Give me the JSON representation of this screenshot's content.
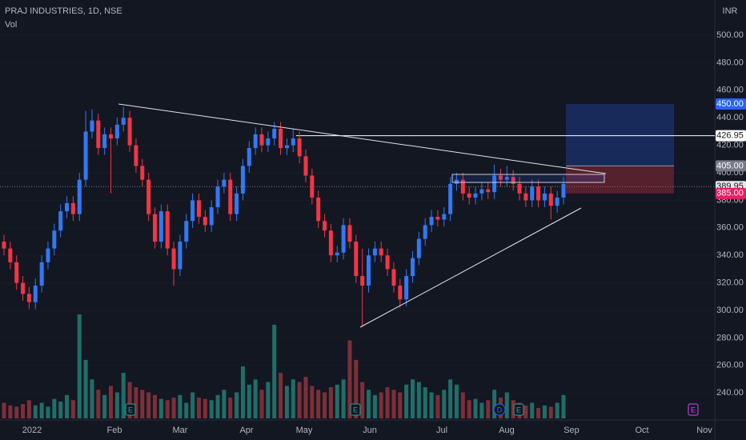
{
  "header": {
    "title": "PRAJ INDUSTRIES, 1D, NSE",
    "indicator": "Vol",
    "currency": "INR"
  },
  "chart_data": {
    "type": "candlestick",
    "x_labels": [
      "2022",
      "Feb",
      "Mar",
      "Apr",
      "May",
      "Jun",
      "Jul",
      "Aug",
      "Sep",
      "Oct",
      "Nov"
    ],
    "open": [
      350,
      345,
      335,
      320,
      312,
      306,
      318,
      335,
      345,
      358,
      372,
      378,
      370,
      395,
      430,
      438,
      418,
      428,
      425,
      435,
      440,
      420,
      405,
      395,
      370,
      350,
      372,
      345,
      330,
      350,
      365,
      380,
      368,
      362,
      375,
      390,
      395,
      370,
      385,
      405,
      418,
      428,
      420,
      425,
      432,
      418,
      420,
      425,
      412,
      398,
      382,
      365,
      358,
      340,
      342,
      362,
      350,
      325,
      318,
      340,
      345,
      340,
      330,
      318,
      308,
      325,
      338,
      352,
      362,
      368,
      366,
      370,
      392,
      395,
      385,
      382,
      385,
      388,
      386,
      398,
      395,
      397,
      392,
      385,
      380,
      390,
      380,
      385,
      376,
      382
    ],
    "high": [
      355,
      350,
      340,
      325,
      317,
      323,
      340,
      350,
      363,
      377,
      383,
      383,
      400,
      445,
      446,
      443,
      433,
      433,
      440,
      448,
      445,
      425,
      410,
      400,
      375,
      377,
      377,
      350,
      355,
      370,
      385,
      385,
      373,
      380,
      395,
      400,
      400,
      390,
      410,
      423,
      433,
      433,
      430,
      437,
      437,
      425,
      432,
      430,
      417,
      403,
      387,
      370,
      363,
      347,
      367,
      367,
      355,
      345,
      345,
      350,
      350,
      345,
      335,
      323,
      330,
      343,
      357,
      367,
      373,
      373,
      375,
      397,
      400,
      400,
      390,
      390,
      393,
      393,
      406,
      403,
      405,
      402,
      397,
      390,
      395,
      395,
      390,
      390,
      387,
      397
    ],
    "low": [
      340,
      330,
      315,
      307,
      301,
      301,
      313,
      330,
      340,
      353,
      367,
      365,
      365,
      390,
      425,
      413,
      413,
      385,
      420,
      430,
      415,
      400,
      390,
      365,
      345,
      345,
      340,
      318,
      325,
      345,
      360,
      363,
      357,
      357,
      370,
      385,
      365,
      365,
      380,
      400,
      413,
      415,
      415,
      420,
      413,
      413,
      415,
      407,
      393,
      377,
      360,
      353,
      335,
      335,
      337,
      345,
      320,
      288,
      313,
      335,
      335,
      325,
      313,
      302,
      303,
      320,
      333,
      347,
      357,
      361,
      361,
      365,
      387,
      380,
      377,
      377,
      380,
      381,
      381,
      390,
      390,
      387,
      380,
      375,
      375,
      375,
      375,
      366,
      371,
      377
    ],
    "close": [
      345,
      335,
      320,
      312,
      306,
      318,
      335,
      345,
      358,
      372,
      378,
      370,
      395,
      430,
      438,
      418,
      428,
      425,
      435,
      440,
      420,
      405,
      395,
      370,
      350,
      372,
      345,
      330,
      350,
      365,
      380,
      368,
      362,
      375,
      390,
      395,
      370,
      385,
      405,
      418,
      428,
      420,
      425,
      432,
      418,
      420,
      425,
      412,
      398,
      382,
      365,
      358,
      340,
      342,
      362,
      350,
      325,
      318,
      340,
      345,
      340,
      330,
      318,
      308,
      325,
      338,
      352,
      362,
      368,
      366,
      370,
      392,
      395,
      385,
      382,
      385,
      388,
      386,
      398,
      395,
      397,
      392,
      385,
      380,
      390,
      380,
      385,
      376,
      382,
      392
    ],
    "volume": [
      12,
      10,
      9,
      11,
      14,
      10,
      12,
      9,
      15,
      13,
      18,
      14,
      80,
      45,
      30,
      22,
      18,
      25,
      20,
      35,
      28,
      24,
      22,
      20,
      18,
      15,
      14,
      16,
      18,
      12,
      20,
      16,
      15,
      14,
      18,
      22,
      16,
      20,
      40,
      26,
      30,
      22,
      28,
      72,
      35,
      25,
      30,
      28,
      32,
      25,
      22,
      20,
      24,
      26,
      30,
      60,
      45,
      28,
      22,
      18,
      20,
      24,
      22,
      20,
      26,
      30,
      28,
      24,
      20,
      18,
      22,
      30,
      26,
      20,
      14,
      15,
      12,
      14,
      22,
      16,
      20,
      14,
      12,
      10,
      12,
      8,
      10,
      9,
      12,
      18
    ],
    "up_color": "#3179f5",
    "down_color": "#f23645",
    "volume_up_color": "#1f6f68",
    "volume_down_color": "#7d2f38",
    "ylim": [
      220.35,
      525.6
    ],
    "yticks": [
      {
        "value": 240,
        "label": "240.00"
      },
      {
        "value": 260,
        "label": "260.00"
      },
      {
        "value": 280,
        "label": "280.00"
      },
      {
        "value": 300,
        "label": "300.00"
      },
      {
        "value": 320,
        "label": "320.00"
      },
      {
        "value": 340,
        "label": "340.00"
      },
      {
        "value": 360,
        "label": "360.00"
      },
      {
        "value": 380,
        "label": "380.00"
      },
      {
        "value": 400,
        "label": "400.00"
      },
      {
        "value": 420,
        "label": "420.00"
      },
      {
        "value": 440,
        "label": "440.00"
      },
      {
        "value": 460,
        "label": "460.00"
      },
      {
        "value": 480,
        "label": "480.00"
      },
      {
        "value": 500,
        "label": "500.00"
      }
    ],
    "price_labels": [
      {
        "value": 450,
        "label": "450.00",
        "bg": "#2962ff",
        "fg": "#ffffff"
      },
      {
        "value": 426.95,
        "label": "426.95",
        "bg": "#ffffff",
        "fg": "#131722"
      },
      {
        "value": 405,
        "label": "405.00",
        "bg": "#787b86",
        "fg": "#ffffff"
      },
      {
        "value": 389.95,
        "label": "389.95",
        "bg": "#e8e8ea",
        "fg": "#131722"
      },
      {
        "value": 385,
        "label": "385.00",
        "bg": "#e91e63",
        "fg": "#ffffff"
      }
    ],
    "events": [
      "E",
      "E",
      "D",
      "E",
      "E"
    ]
  }
}
